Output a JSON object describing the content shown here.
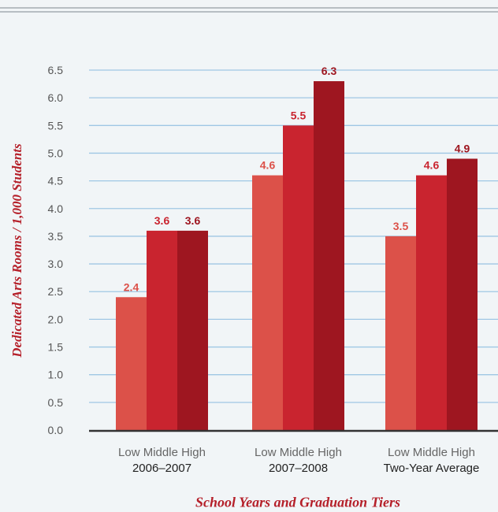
{
  "chart_data": {
    "type": "bar",
    "ylabel": "Dedicated Arts Rooms / 1,000 Students",
    "xlabel": "School Years and Graduation Tiers",
    "ylim": [
      0,
      6.5
    ],
    "y_ticks": [
      "0.0",
      "0.5",
      "1.0",
      "1.5",
      "2.0",
      "2.5",
      "3.0",
      "3.5",
      "4.0",
      "4.5",
      "5.0",
      "5.5",
      "6.0",
      "6.5"
    ],
    "grid": true,
    "tier_labels": "Low Middle High",
    "groups": [
      {
        "name": "2006–2007",
        "values": [
          2.4,
          3.6,
          3.6
        ],
        "labels": [
          "2.4",
          "3.6",
          "3.6"
        ]
      },
      {
        "name": "2007–2008",
        "values": [
          4.6,
          5.5,
          6.3
        ],
        "labels": [
          "4.6",
          "5.5",
          "6.3"
        ]
      },
      {
        "name": "Two-Year Average",
        "values": [
          3.5,
          4.6,
          4.9
        ],
        "labels": [
          "3.5",
          "4.6",
          "4.9"
        ]
      }
    ],
    "colors": {
      "low": "#dc5149",
      "middle": "#c9242f",
      "high": "#9e1620",
      "low_label": "#dc5149",
      "middle_label": "#c9242f",
      "high_label": "#9e1620",
      "grid": "#9fc7e4",
      "axis": "#333333",
      "tick_text": "#555555"
    }
  }
}
